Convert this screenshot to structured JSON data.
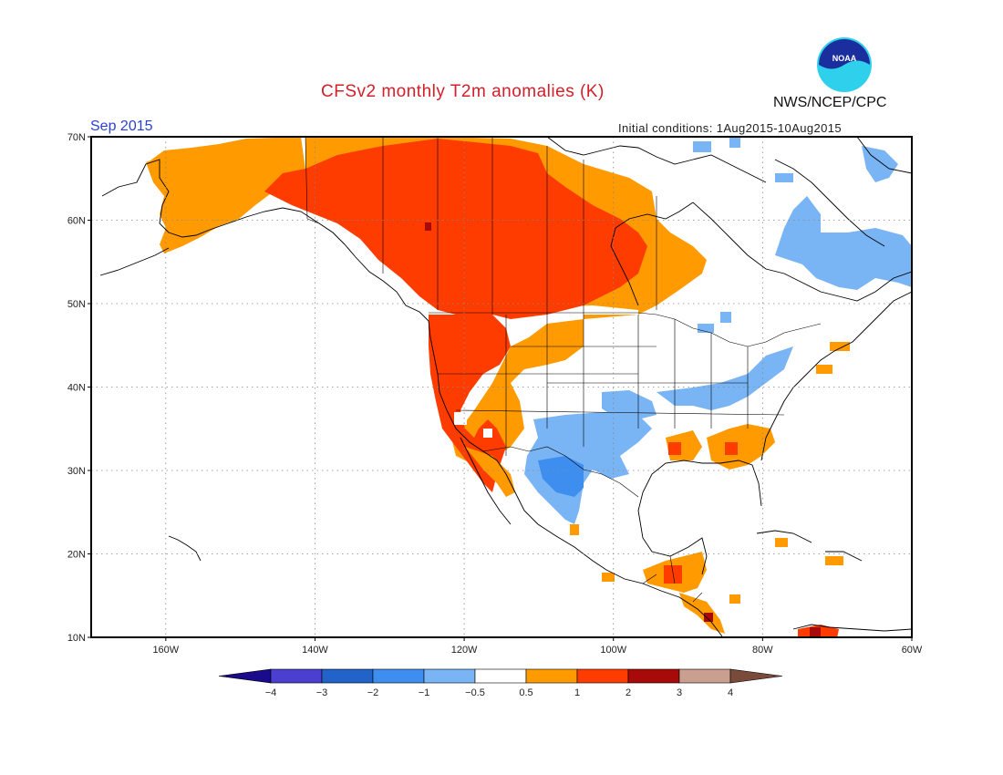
{
  "header": {
    "title": "CFSv2 monthly T2m anomalies (K)",
    "month": "Sep 2015",
    "initial_conditions": "Initial conditions: 1Aug2015-10Aug2015",
    "agency": "NWS/NCEP/CPC",
    "logo_text": "NOAA"
  },
  "map": {
    "lon_range": [
      -170,
      -60
    ],
    "lat_range": [
      10,
      70
    ],
    "lat_labels": [
      "70N",
      "60N",
      "50N",
      "40N",
      "30N",
      "20N",
      "10N"
    ],
    "lon_labels": [
      "160W",
      "140W",
      "120W",
      "100W",
      "80W",
      "60W"
    ],
    "grid_lats": [
      20,
      30,
      40,
      50,
      60
    ],
    "grid_lons": [
      -160,
      -140,
      -120,
      -100,
      -80
    ]
  },
  "colorbar": {
    "labels": [
      "-4",
      "-3",
      "-2",
      "-1",
      "-0.5",
      "0.5",
      "1",
      "2",
      "3",
      "4"
    ],
    "colors": [
      "#1a0a8c",
      "#4b3fd1",
      "#2163c9",
      "#3e8ef0",
      "#79b4f5",
      "#ffffff",
      "#ff9a00",
      "#ff3c00",
      "#a80a0a",
      "#c9a08f",
      "#7a4b3a"
    ]
  },
  "colors": {
    "frame": "#000000",
    "grid": "#888888",
    "coast": "#000000",
    "weak_warm": "#ff9a00",
    "warm": "#ff3c00",
    "strong_warm": "#a80a0a",
    "weak_cool": "#79b4f5",
    "cool": "#3e8ef0"
  }
}
